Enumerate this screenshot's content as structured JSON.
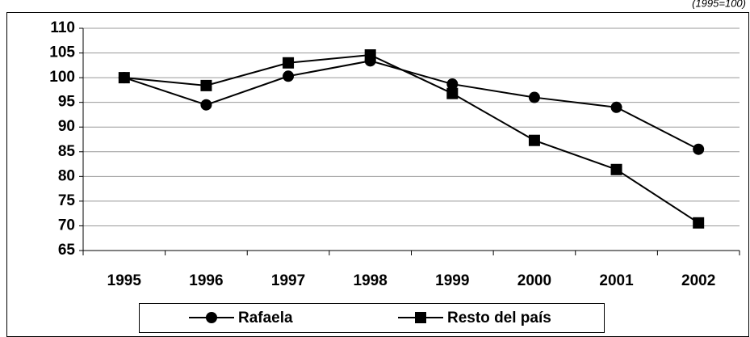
{
  "chart_data": {
    "type": "line",
    "subtitle": "(1995=100)",
    "categories": [
      "1995",
      "1996",
      "1997",
      "1998",
      "1999",
      "2000",
      "2001",
      "2002"
    ],
    "series": [
      {
        "name": "Rafaela",
        "color": "#000000",
        "marker": "circle",
        "values": [
          100,
          94.5,
          100.3,
          103.4,
          98.7,
          96,
          94,
          85.5
        ]
      },
      {
        "name": "Resto del país",
        "color": "#000000",
        "marker": "square",
        "values": [
          100,
          98.4,
          103,
          104.6,
          96.8,
          87.3,
          81.4,
          70.6
        ]
      }
    ],
    "ylim": [
      65,
      110
    ],
    "yticks": [
      65,
      70,
      75,
      80,
      85,
      90,
      95,
      100,
      105,
      110
    ],
    "grid": true
  }
}
